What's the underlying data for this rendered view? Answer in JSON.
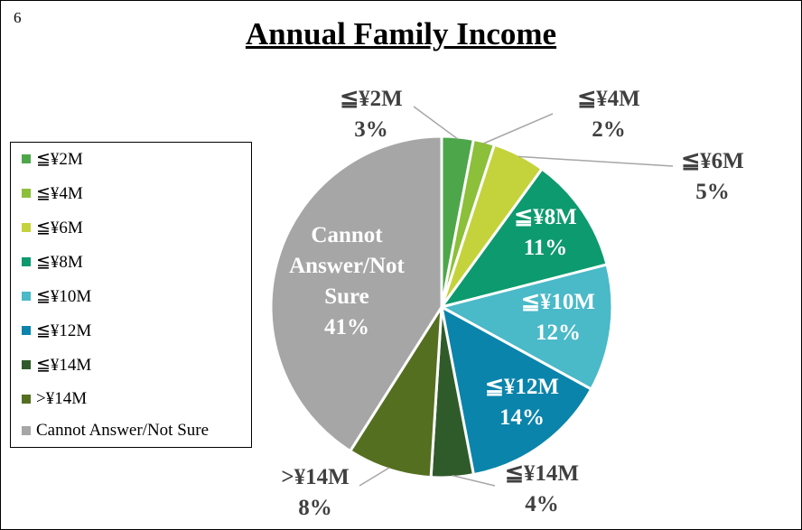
{
  "page_number": "6",
  "chart_data": {
    "type": "pie",
    "title": "Annual Family Income",
    "legend_position": "left",
    "slices": [
      {
        "label": "≦¥2M",
        "value": 3,
        "pct_label": "3%",
        "color": "#4ea64a"
      },
      {
        "label": "≦¥4M",
        "value": 2,
        "pct_label": "2%",
        "color": "#8cbf3a"
      },
      {
        "label": "≦¥6M",
        "value": 5,
        "pct_label": "5%",
        "color": "#c4d33b"
      },
      {
        "label": "≦¥8M",
        "value": 11,
        "pct_label": "11%",
        "color": "#0d9a6e"
      },
      {
        "label": "≦¥10M",
        "value": 12,
        "pct_label": "12%",
        "color": "#4ab9c8"
      },
      {
        "label": "≦¥12M",
        "value": 14,
        "pct_label": "14%",
        "color": "#0a84ab"
      },
      {
        "label": "≦¥14M",
        "value": 4,
        "pct_label": "4%",
        "color": "#2f5b2a"
      },
      {
        "label": ">¥14M",
        "value": 8,
        "pct_label": "8%",
        "color": "#556f21"
      },
      {
        "label": "Cannot Answer/Not Sure",
        "value": 41,
        "pct_label": "41%",
        "color": "#a6a6a6"
      }
    ]
  }
}
